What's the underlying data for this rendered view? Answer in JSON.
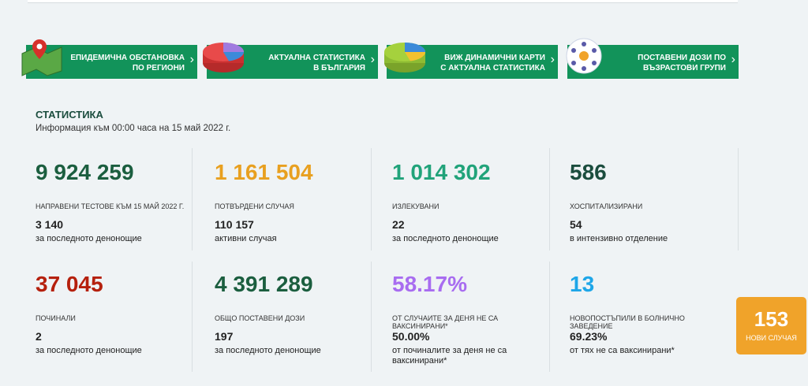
{
  "nav": [
    {
      "lines": [
        "ЕПИДЕМИЧНА ОБСТАНОВКА",
        "ПО РЕГИОНИ"
      ]
    },
    {
      "lines": [
        "АКТУАЛНА СТАТИСТИКА",
        "В БЪЛГАРИЯ"
      ]
    },
    {
      "lines": [
        "ВИЖ ДИНАМИЧНИ КАРТИ",
        "С АКТУАЛНА СТАТИСТИКА"
      ]
    },
    {
      "lines": [
        "ПОСТАВЕНИ ДОЗИ ПО",
        "ВЪЗРАСТОВИ ГРУПИ"
      ]
    }
  ],
  "statistics": {
    "title": "СТАТИСТИКА",
    "subtitle": "Информация към 00:00 часа на 15 май 2022 г.",
    "cards": [
      {
        "value": "9 924 259",
        "label": "НАПРАВЕНИ ТЕСТОВЕ КЪМ 15 МАЙ 2022 Г.",
        "detail_value": "3 140",
        "detail_label": "за последното денонощие"
      },
      {
        "value": "1 161 504",
        "label": "ПОТВЪРДЕНИ СЛУЧАЯ",
        "detail_value": "110 157",
        "detail_label": "активни случая"
      },
      {
        "value": "1 014 302",
        "label": "ИЗЛЕКУВАНИ",
        "detail_value": "22",
        "detail_label": "за последното денонощие"
      },
      {
        "value": "586",
        "label": "ХОСПИТАЛИЗИРАНИ",
        "detail_value": "54",
        "detail_label": "в интензивно отделение"
      },
      {
        "value": "37 045",
        "label": "ПОЧИНАЛИ",
        "detail_value": "2",
        "detail_label": "за последното денонощие"
      },
      {
        "value": "4 391 289",
        "label": "ОБЩО ПОСТАВЕНИ ДОЗИ",
        "detail_value": "197",
        "detail_label": "за последното денонощие"
      },
      {
        "value": "58.17%",
        "label": "ОТ СЛУЧАИТЕ ЗА ДЕНЯ НЕ СА ВАКСИНИРАНИ*",
        "detail_value": "50.00%",
        "detail_label": "от починалите за деня не са ваксинирани*"
      },
      {
        "value": "13",
        "label": "НОВОПОСТЪПИЛИ В БОЛНИЧНО ЗАВЕДЕНИЕ",
        "detail_value": "69.23%",
        "detail_label": "от тях не са ваксинирани*"
      }
    ]
  },
  "badge": {
    "value": "153",
    "label": "НОВИ СЛУЧАЯ"
  }
}
